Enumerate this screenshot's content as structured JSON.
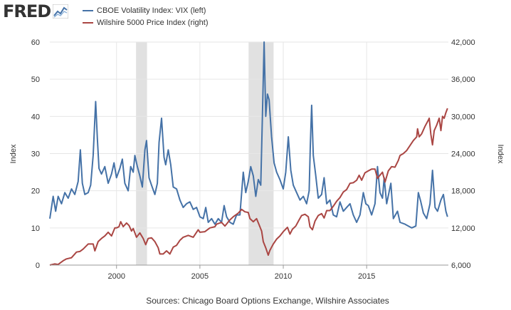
{
  "logo": {
    "text": "FRED",
    "icon": "line-chart-icon"
  },
  "chart_data": {
    "type": "line",
    "x_start": 1996.0,
    "x_end": 2019.9,
    "x_ticks": [
      "2000",
      "2005",
      "2010",
      "2015"
    ],
    "left_axis": {
      "label": "Index",
      "ylim": [
        0,
        60
      ],
      "ticks": [
        "0",
        "10",
        "20",
        "30",
        "40",
        "50",
        "60"
      ]
    },
    "right_axis": {
      "label": "Index",
      "ylim": [
        6000,
        42000
      ],
      "ticks": [
        "6,000",
        "12,000",
        "18,000",
        "24,000",
        "30,000",
        "36,000",
        "42,000"
      ]
    },
    "grid": true,
    "recessions": [
      [
        2001.17,
        2001.83
      ],
      [
        2007.92,
        2009.42
      ]
    ],
    "series": [
      {
        "name": "CBOE Volatility Index: VIX (left)",
        "color": "#4572a7",
        "axis": "left",
        "points": [
          [
            1996.0,
            12.5
          ],
          [
            1996.2,
            18.5
          ],
          [
            1996.35,
            14.5
          ],
          [
            1996.5,
            18.5
          ],
          [
            1996.7,
            16.5
          ],
          [
            1996.9,
            19.5
          ],
          [
            1997.1,
            18.0
          ],
          [
            1997.3,
            20.5
          ],
          [
            1997.5,
            19.0
          ],
          [
            1997.7,
            22.5
          ],
          [
            1997.83,
            31.0
          ],
          [
            1997.95,
            22.0
          ],
          [
            1998.1,
            19.0
          ],
          [
            1998.3,
            19.5
          ],
          [
            1998.45,
            21.5
          ],
          [
            1998.6,
            29.5
          ],
          [
            1998.75,
            44.0
          ],
          [
            1998.85,
            34.0
          ],
          [
            1998.95,
            26.0
          ],
          [
            1999.1,
            24.5
          ],
          [
            1999.3,
            26.5
          ],
          [
            1999.5,
            22.0
          ],
          [
            1999.7,
            24.5
          ],
          [
            1999.85,
            27.5
          ],
          [
            2000.0,
            23.5
          ],
          [
            2000.2,
            26.0
          ],
          [
            2000.35,
            28.5
          ],
          [
            2000.5,
            22.0
          ],
          [
            2000.7,
            20.0
          ],
          [
            2000.85,
            26.5
          ],
          [
            2001.0,
            25.0
          ],
          [
            2001.1,
            29.5
          ],
          [
            2001.25,
            26.5
          ],
          [
            2001.4,
            24.0
          ],
          [
            2001.55,
            21.0
          ],
          [
            2001.7,
            31.0
          ],
          [
            2001.8,
            33.5
          ],
          [
            2001.95,
            23.5
          ],
          [
            2002.1,
            21.5
          ],
          [
            2002.3,
            19.0
          ],
          [
            2002.45,
            22.0
          ],
          [
            2002.55,
            33.0
          ],
          [
            2002.7,
            39.5
          ],
          [
            2002.85,
            29.0
          ],
          [
            2002.95,
            27.0
          ],
          [
            2003.1,
            31.0
          ],
          [
            2003.25,
            27.0
          ],
          [
            2003.4,
            21.0
          ],
          [
            2003.6,
            20.5
          ],
          [
            2003.8,
            17.5
          ],
          [
            2004.0,
            15.5
          ],
          [
            2004.2,
            16.5
          ],
          [
            2004.4,
            17.0
          ],
          [
            2004.6,
            15.0
          ],
          [
            2004.8,
            15.5
          ],
          [
            2005.0,
            13.0
          ],
          [
            2005.2,
            12.5
          ],
          [
            2005.35,
            15.5
          ],
          [
            2005.5,
            11.5
          ],
          [
            2005.7,
            12.5
          ],
          [
            2005.9,
            11.0
          ],
          [
            2006.1,
            12.5
          ],
          [
            2006.3,
            11.5
          ],
          [
            2006.45,
            16.0
          ],
          [
            2006.6,
            13.0
          ],
          [
            2006.8,
            11.5
          ],
          [
            2007.0,
            11.0
          ],
          [
            2007.2,
            13.5
          ],
          [
            2007.4,
            13.5
          ],
          [
            2007.6,
            25.0
          ],
          [
            2007.75,
            19.5
          ],
          [
            2007.9,
            22.5
          ],
          [
            2008.05,
            26.5
          ],
          [
            2008.2,
            24.0
          ],
          [
            2008.35,
            18.5
          ],
          [
            2008.5,
            23.0
          ],
          [
            2008.65,
            21.5
          ],
          [
            2008.75,
            40.0
          ],
          [
            2008.85,
            60.0
          ],
          [
            2008.95,
            40.0
          ],
          [
            2009.05,
            46.0
          ],
          [
            2009.15,
            44.5
          ],
          [
            2009.3,
            34.5
          ],
          [
            2009.45,
            27.5
          ],
          [
            2009.6,
            25.0
          ],
          [
            2009.8,
            23.0
          ],
          [
            2010.0,
            20.5
          ],
          [
            2010.15,
            25.0
          ],
          [
            2010.3,
            34.5
          ],
          [
            2010.45,
            25.5
          ],
          [
            2010.6,
            21.5
          ],
          [
            2010.8,
            19.5
          ],
          [
            2011.0,
            17.5
          ],
          [
            2011.2,
            18.5
          ],
          [
            2011.4,
            16.5
          ],
          [
            2011.55,
            20.0
          ],
          [
            2011.62,
            32.0
          ],
          [
            2011.7,
            43.0
          ],
          [
            2011.8,
            29.5
          ],
          [
            2011.95,
            24.0
          ],
          [
            2012.1,
            18.0
          ],
          [
            2012.3,
            19.0
          ],
          [
            2012.45,
            23.5
          ],
          [
            2012.6,
            16.5
          ],
          [
            2012.8,
            17.5
          ],
          [
            2013.0,
            13.5
          ],
          [
            2013.2,
            13.0
          ],
          [
            2013.4,
            17.0
          ],
          [
            2013.6,
            14.5
          ],
          [
            2013.8,
            15.5
          ],
          [
            2014.0,
            16.5
          ],
          [
            2014.2,
            13.5
          ],
          [
            2014.4,
            11.5
          ],
          [
            2014.6,
            13.5
          ],
          [
            2014.8,
            19.5
          ],
          [
            2014.95,
            16.5
          ],
          [
            2015.1,
            16.0
          ],
          [
            2015.3,
            13.5
          ],
          [
            2015.5,
            16.5
          ],
          [
            2015.65,
            26.5
          ],
          [
            2015.8,
            19.5
          ],
          [
            2015.95,
            18.0
          ],
          [
            2016.05,
            23.5
          ],
          [
            2016.2,
            16.5
          ],
          [
            2016.45,
            22.0
          ],
          [
            2016.6,
            12.5
          ],
          [
            2016.85,
            14.5
          ],
          [
            2017.0,
            11.5
          ],
          [
            2017.3,
            11.0
          ],
          [
            2017.5,
            10.5
          ],
          [
            2017.7,
            10.0
          ],
          [
            2017.95,
            10.5
          ],
          [
            2018.1,
            19.5
          ],
          [
            2018.25,
            17.0
          ],
          [
            2018.4,
            14.0
          ],
          [
            2018.6,
            12.5
          ],
          [
            2018.8,
            16.5
          ],
          [
            2018.95,
            25.5
          ],
          [
            2019.1,
            15.5
          ],
          [
            2019.25,
            14.5
          ],
          [
            2019.45,
            17.5
          ],
          [
            2019.6,
            19.0
          ],
          [
            2019.75,
            14.5
          ],
          [
            2019.85,
            13.0
          ]
        ]
      },
      {
        "name": "Wilshire 5000 Price Index (right)",
        "color": "#aa4643",
        "axis": "right",
        "points": [
          [
            1996.0,
            6000
          ],
          [
            1996.3,
            6200
          ],
          [
            1996.5,
            6100
          ],
          [
            1996.8,
            6700
          ],
          [
            1997.0,
            7000
          ],
          [
            1997.3,
            7200
          ],
          [
            1997.6,
            8100
          ],
          [
            1997.8,
            8200
          ],
          [
            1998.0,
            8600
          ],
          [
            1998.3,
            9400
          ],
          [
            1998.6,
            9400
          ],
          [
            1998.7,
            8300
          ],
          [
            1998.9,
            9800
          ],
          [
            1999.1,
            10300
          ],
          [
            1999.3,
            10700
          ],
          [
            1999.5,
            11300
          ],
          [
            1999.7,
            10700
          ],
          [
            1999.9,
            12000
          ],
          [
            2000.0,
            12000
          ],
          [
            2000.15,
            12200
          ],
          [
            2000.25,
            13000
          ],
          [
            2000.4,
            12200
          ],
          [
            2000.6,
            12800
          ],
          [
            2000.75,
            12400
          ],
          [
            2000.9,
            11500
          ],
          [
            2001.0,
            11900
          ],
          [
            2001.2,
            10500
          ],
          [
            2001.4,
            11200
          ],
          [
            2001.6,
            10300
          ],
          [
            2001.75,
            9300
          ],
          [
            2001.9,
            10300
          ],
          [
            2002.1,
            10400
          ],
          [
            2002.3,
            9800
          ],
          [
            2002.5,
            8800
          ],
          [
            2002.6,
            7800
          ],
          [
            2002.8,
            7800
          ],
          [
            2003.0,
            8300
          ],
          [
            2003.2,
            7800
          ],
          [
            2003.4,
            8900
          ],
          [
            2003.6,
            9200
          ],
          [
            2003.8,
            10000
          ],
          [
            2004.0,
            10500
          ],
          [
            2004.3,
            10800
          ],
          [
            2004.6,
            10500
          ],
          [
            2004.9,
            11700
          ],
          [
            2005.0,
            11300
          ],
          [
            2005.3,
            11400
          ],
          [
            2005.6,
            12000
          ],
          [
            2005.9,
            12200
          ],
          [
            2006.0,
            12600
          ],
          [
            2006.3,
            12900
          ],
          [
            2006.5,
            12300
          ],
          [
            2006.8,
            13300
          ],
          [
            2007.0,
            13800
          ],
          [
            2007.3,
            14400
          ],
          [
            2007.5,
            15000
          ],
          [
            2007.7,
            14600
          ],
          [
            2007.9,
            14500
          ],
          [
            2008.0,
            13500
          ],
          [
            2008.2,
            13000
          ],
          [
            2008.4,
            13500
          ],
          [
            2008.55,
            12500
          ],
          [
            2008.7,
            11500
          ],
          [
            2008.8,
            9800
          ],
          [
            2008.95,
            8800
          ],
          [
            2009.1,
            7600
          ],
          [
            2009.2,
            8400
          ],
          [
            2009.4,
            9400
          ],
          [
            2009.6,
            10200
          ],
          [
            2009.8,
            10700
          ],
          [
            2010.0,
            11400
          ],
          [
            2010.25,
            12100
          ],
          [
            2010.4,
            11000
          ],
          [
            2010.55,
            11800
          ],
          [
            2010.75,
            12300
          ],
          [
            2010.95,
            13300
          ],
          [
            2011.1,
            14000
          ],
          [
            2011.3,
            14200
          ],
          [
            2011.5,
            13800
          ],
          [
            2011.6,
            12200
          ],
          [
            2011.75,
            11700
          ],
          [
            2011.9,
            13100
          ],
          [
            2012.1,
            14000
          ],
          [
            2012.3,
            14300
          ],
          [
            2012.45,
            13600
          ],
          [
            2012.6,
            14800
          ],
          [
            2012.8,
            14800
          ],
          [
            2013.0,
            15500
          ],
          [
            2013.2,
            16300
          ],
          [
            2013.4,
            16900
          ],
          [
            2013.6,
            17800
          ],
          [
            2013.8,
            18200
          ],
          [
            2014.0,
            19200
          ],
          [
            2014.2,
            19300
          ],
          [
            2014.4,
            19700
          ],
          [
            2014.55,
            20500
          ],
          [
            2014.7,
            19700
          ],
          [
            2014.9,
            20900
          ],
          [
            2015.1,
            21200
          ],
          [
            2015.3,
            21500
          ],
          [
            2015.5,
            21500
          ],
          [
            2015.65,
            20000
          ],
          [
            2015.8,
            20500
          ],
          [
            2015.95,
            21000
          ],
          [
            2016.1,
            19400
          ],
          [
            2016.3,
            21200
          ],
          [
            2016.5,
            21900
          ],
          [
            2016.7,
            21800
          ],
          [
            2016.9,
            22900
          ],
          [
            2017.0,
            23700
          ],
          [
            2017.2,
            24000
          ],
          [
            2017.4,
            24500
          ],
          [
            2017.6,
            25300
          ],
          [
            2017.8,
            26100
          ],
          [
            2018.0,
            26700
          ],
          [
            2018.05,
            28000
          ],
          [
            2018.15,
            26700
          ],
          [
            2018.3,
            27200
          ],
          [
            2018.5,
            28400
          ],
          [
            2018.7,
            29400
          ],
          [
            2018.75,
            29700
          ],
          [
            2018.85,
            27100
          ],
          [
            2018.95,
            25400
          ],
          [
            2019.05,
            27700
          ],
          [
            2019.2,
            28600
          ],
          [
            2019.35,
            29700
          ],
          [
            2019.45,
            27700
          ],
          [
            2019.55,
            30000
          ],
          [
            2019.65,
            29700
          ],
          [
            2019.75,
            30600
          ],
          [
            2019.85,
            31300
          ]
        ]
      }
    ]
  },
  "source_note": "Sources: Chicago Board Options Exchange, Wilshire Associates"
}
